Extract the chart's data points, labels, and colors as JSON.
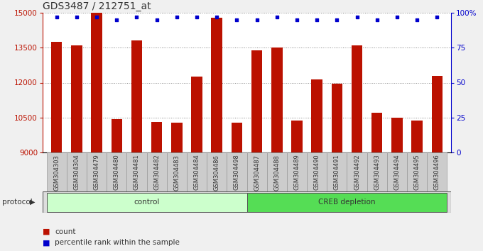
{
  "title": "GDS3487 / 212751_at",
  "samples": [
    "GSM304303",
    "GSM304304",
    "GSM304479",
    "GSM304480",
    "GSM304481",
    "GSM304482",
    "GSM304483",
    "GSM304484",
    "GSM304486",
    "GSM304498",
    "GSM304487",
    "GSM304488",
    "GSM304489",
    "GSM304490",
    "GSM304491",
    "GSM304492",
    "GSM304493",
    "GSM304494",
    "GSM304495",
    "GSM304496"
  ],
  "counts": [
    13750,
    13600,
    15000,
    10430,
    13820,
    10300,
    10280,
    12250,
    14800,
    10280,
    13380,
    13500,
    10380,
    12150,
    11950,
    13600,
    10700,
    10480,
    10360,
    12280
  ],
  "percentiles": [
    97,
    97,
    97,
    95,
    97,
    95,
    97,
    97,
    97,
    95,
    95,
    97,
    95,
    95,
    95,
    97,
    95,
    97,
    95,
    97
  ],
  "bar_color": "#bb1100",
  "dot_color": "#0000cc",
  "ylim_left": [
    9000,
    15000
  ],
  "ybase": 9000,
  "yticks_left": [
    9000,
    10500,
    12000,
    13500,
    15000
  ],
  "ylim_right": [
    0,
    100
  ],
  "yticks_right": [
    0,
    25,
    50,
    75,
    100
  ],
  "ylabel_right_labels": [
    "0",
    "25",
    "50",
    "75",
    "100%"
  ],
  "protocol_groups": [
    {
      "label": "control",
      "start": 0,
      "end": 9,
      "color": "#ccffcc"
    },
    {
      "label": "CREB depletion",
      "start": 10,
      "end": 19,
      "color": "#55dd55"
    }
  ],
  "legend_count_label": "count",
  "legend_pct_label": "percentile rank within the sample",
  "protocol_label": "protocol",
  "fig_bg_color": "#f0f0f0",
  "plot_bg_color": "#ffffff",
  "tick_label_bg": "#cccccc",
  "title_fontsize": 10,
  "tick_fontsize": 7.5,
  "bar_width": 0.55
}
